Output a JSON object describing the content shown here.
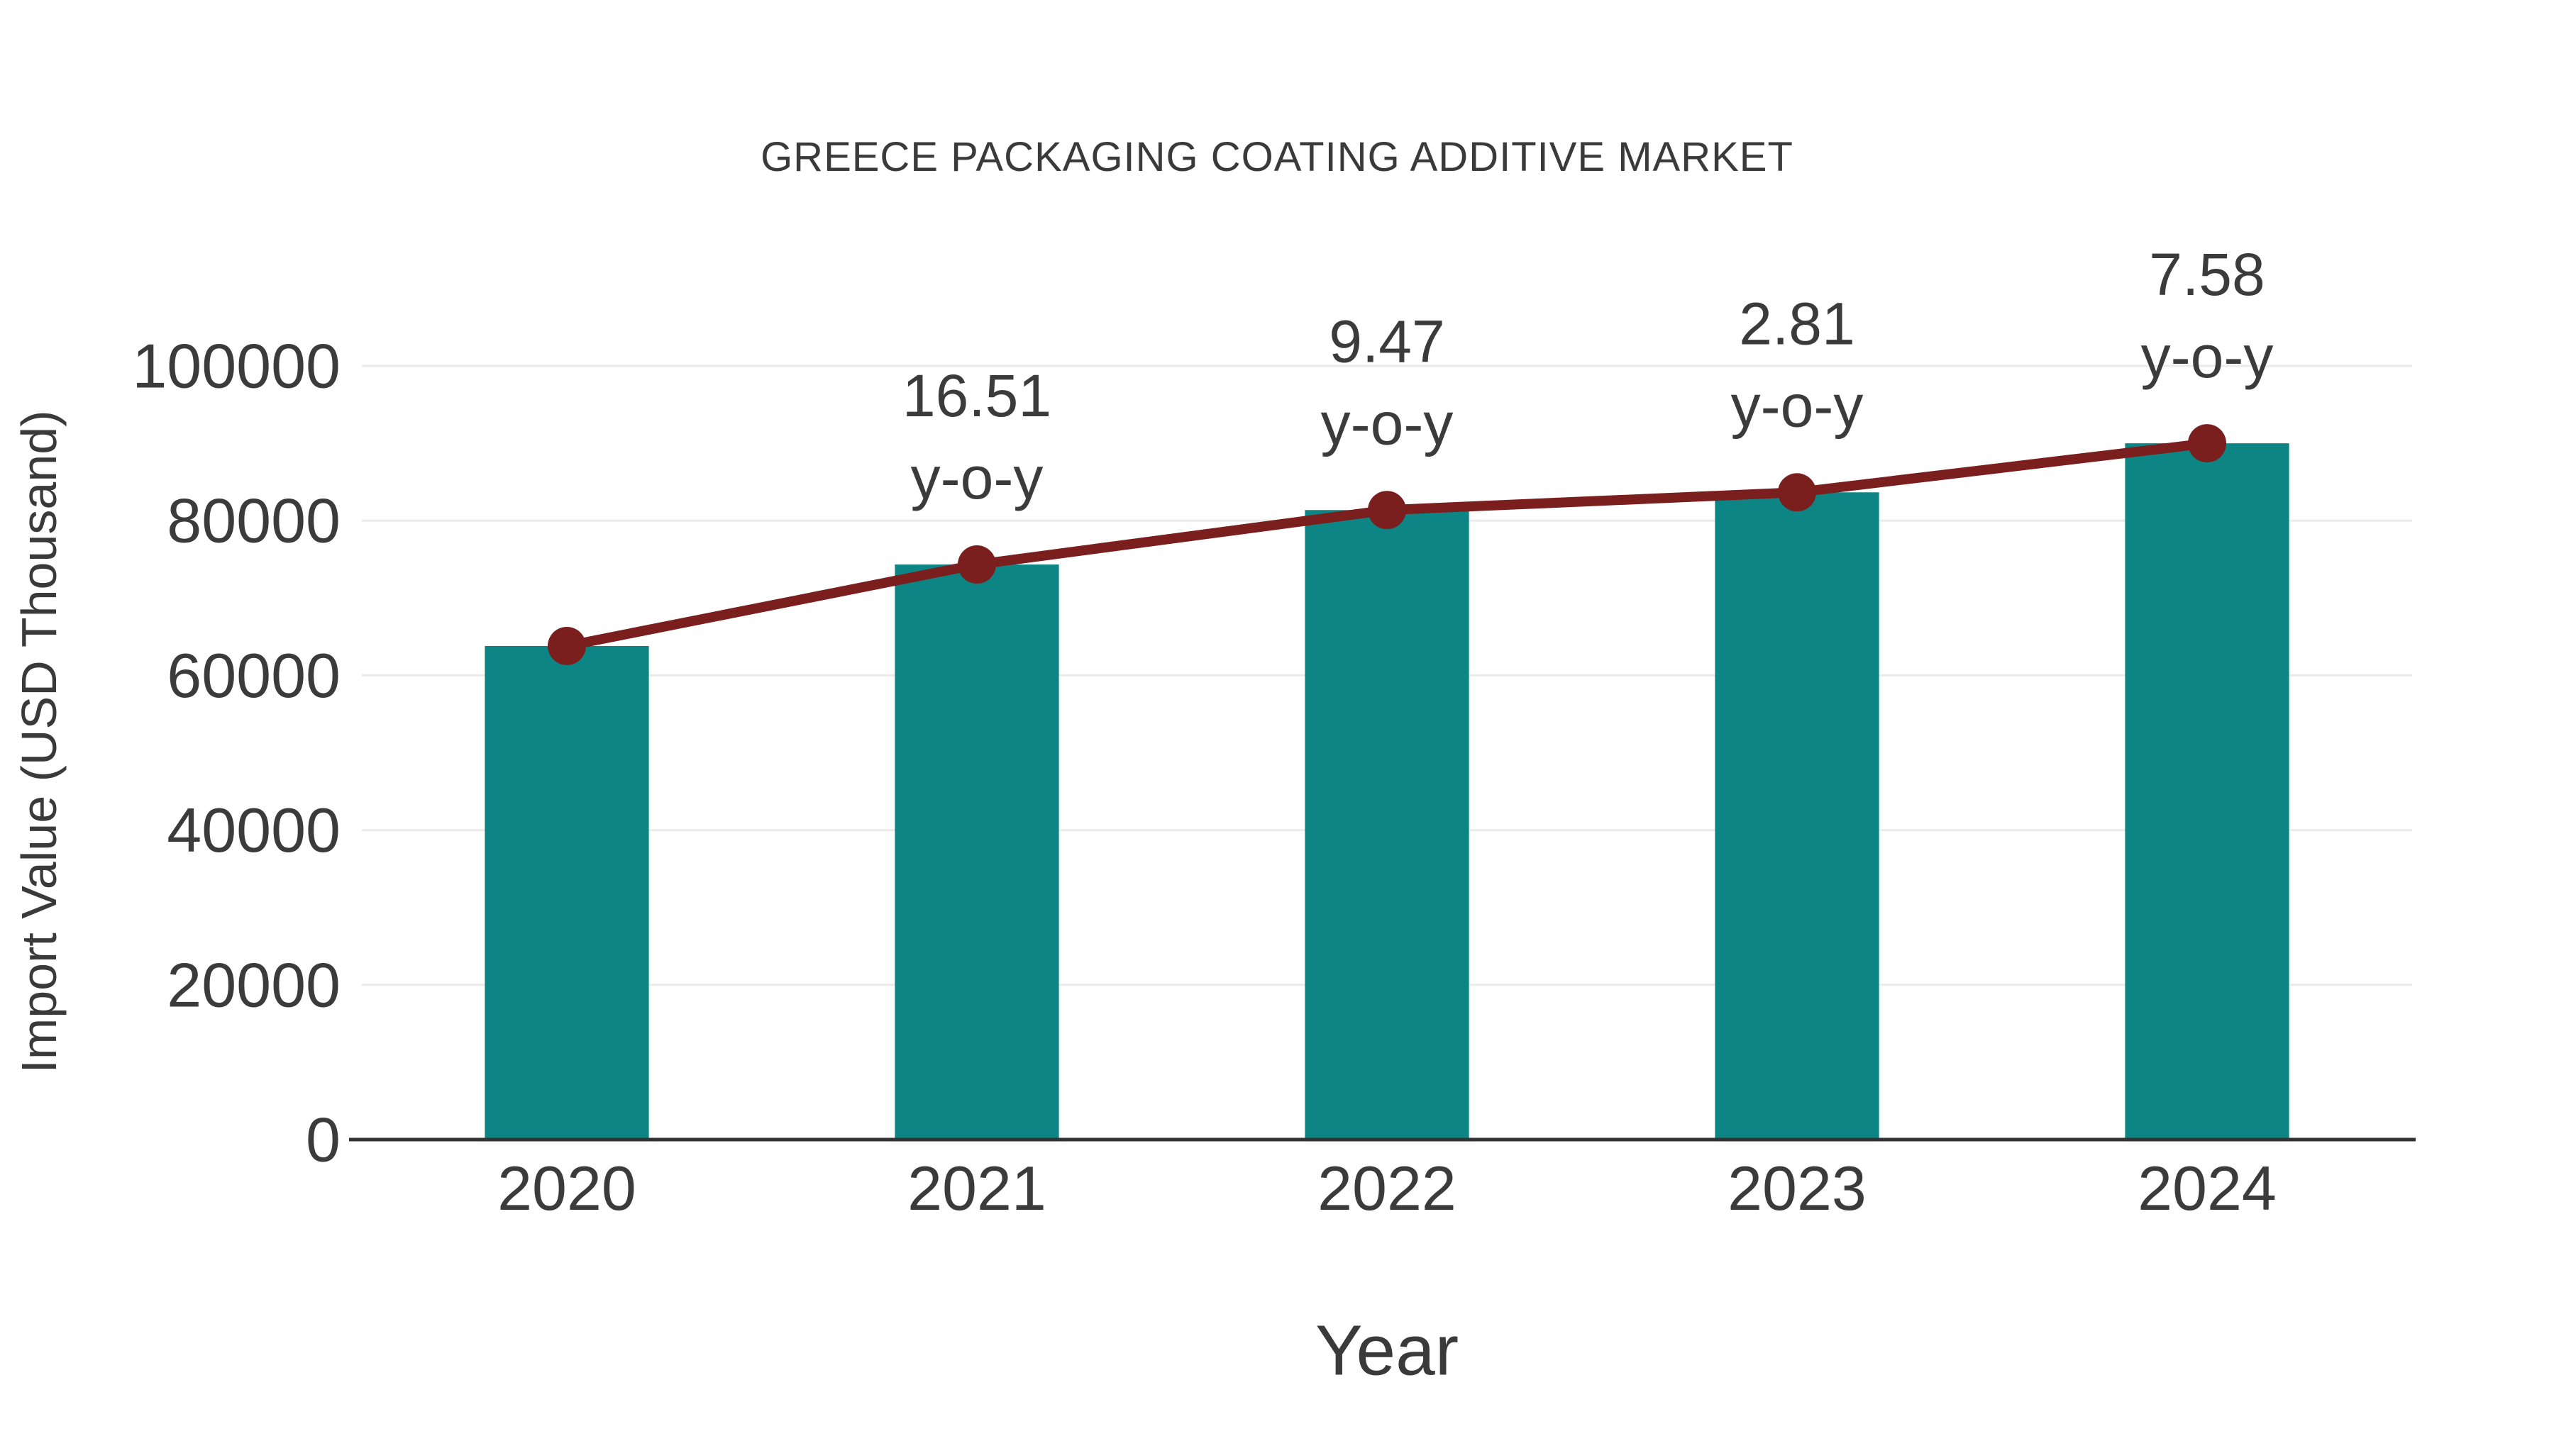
{
  "chart_data": {
    "type": "bar",
    "title": "GREECE PACKAGING COATING ADDITIVE MARKET",
    "xlabel": "Year",
    "ylabel": "Import Value (USD Thousand)",
    "categories": [
      "2020",
      "2021",
      "2022",
      "2023",
      "2024"
    ],
    "series": [
      {
        "name": "Import Value (USD Thousand)",
        "type": "bar",
        "color": "#0e8585",
        "values": [
          63800,
          74330,
          81370,
          83660,
          90000
        ]
      },
      {
        "name": "y-o-y trend line",
        "type": "line",
        "color": "#7a1e1e",
        "values": [
          63800,
          74330,
          81370,
          83660,
          90000
        ]
      }
    ],
    "annotations": [
      {
        "category": "2021",
        "line1": "16.51",
        "line2": "y-o-y"
      },
      {
        "category": "2022",
        "line1": "9.47",
        "line2": "y-o-y"
      },
      {
        "category": "2023",
        "line1": "2.81",
        "line2": "y-o-y"
      },
      {
        "category": "2024",
        "line1": "7.58",
        "line2": "y-o-y"
      }
    ],
    "ylim": [
      0,
      100000
    ],
    "yticks": [
      0,
      20000,
      40000,
      60000,
      80000,
      100000
    ],
    "grid": true,
    "legend": false
  },
  "colors": {
    "bar": "#0e8585",
    "line": "#7a1e1e",
    "grid": "#ebebeb",
    "axis": "#333333",
    "text": "#3b3b3b"
  }
}
